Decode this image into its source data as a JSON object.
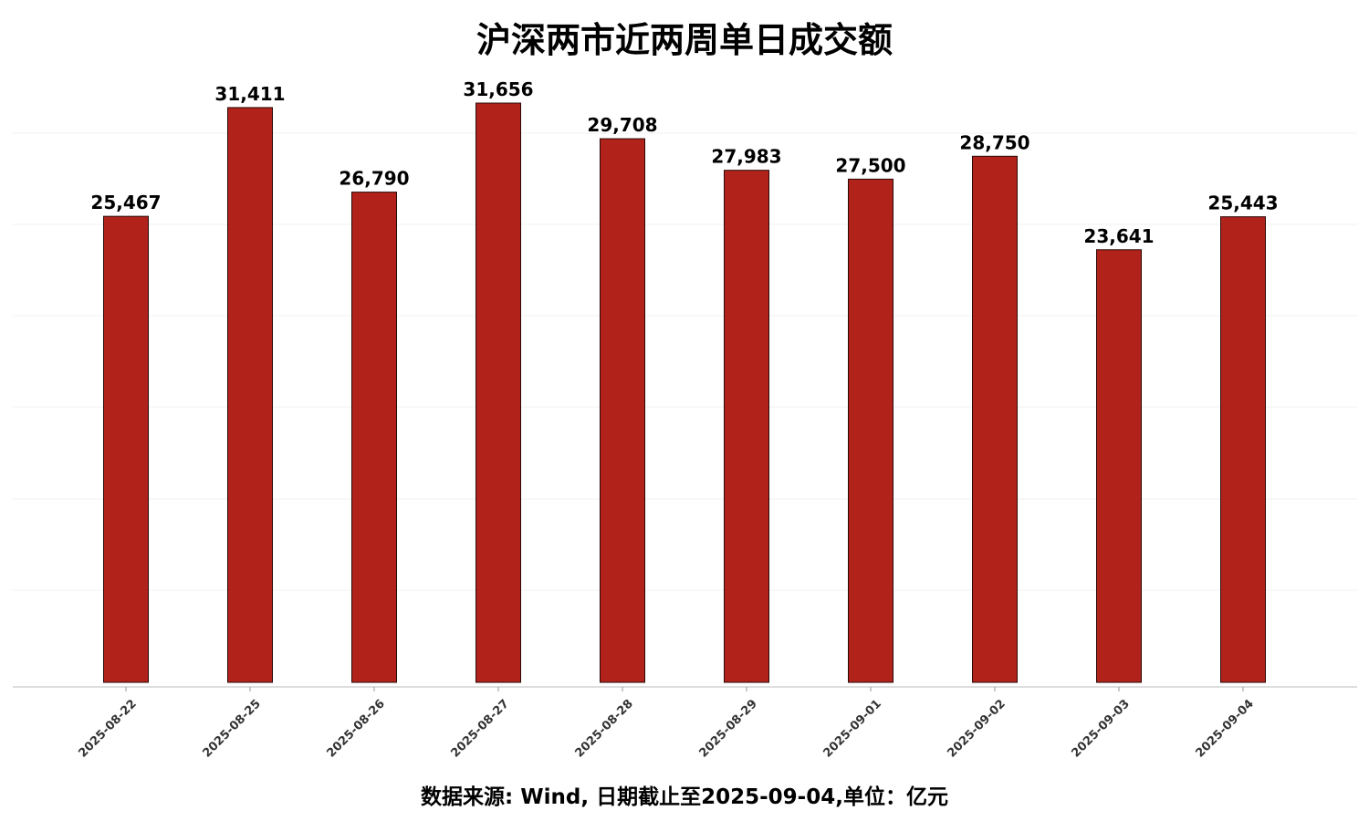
{
  "chart_data": {
    "type": "bar",
    "title": "沪深两市近两周单日成交额",
    "footer": "数据来源: Wind, 日期截止至2025-09-04,单位：亿元",
    "xlabel": "",
    "ylabel": "",
    "categories": [
      "2025-08-22",
      "2025-08-25",
      "2025-08-26",
      "2025-08-27",
      "2025-08-28",
      "2025-08-29",
      "2025-09-01",
      "2025-09-02",
      "2025-09-03",
      "2025-09-04"
    ],
    "values": [
      25467,
      31411,
      26790,
      31656,
      29708,
      27983,
      27500,
      28750,
      23641,
      25443
    ],
    "value_labels": [
      "25,467",
      "31,411",
      "26,790",
      "31,656",
      "29,708",
      "27,983",
      "27,500",
      "28,750",
      "23,641",
      "25,443"
    ],
    "ylim": [
      0,
      31656
    ],
    "grid": true,
    "bar_color": "#b0221a",
    "bar_edge_color": "#2a0a08"
  }
}
